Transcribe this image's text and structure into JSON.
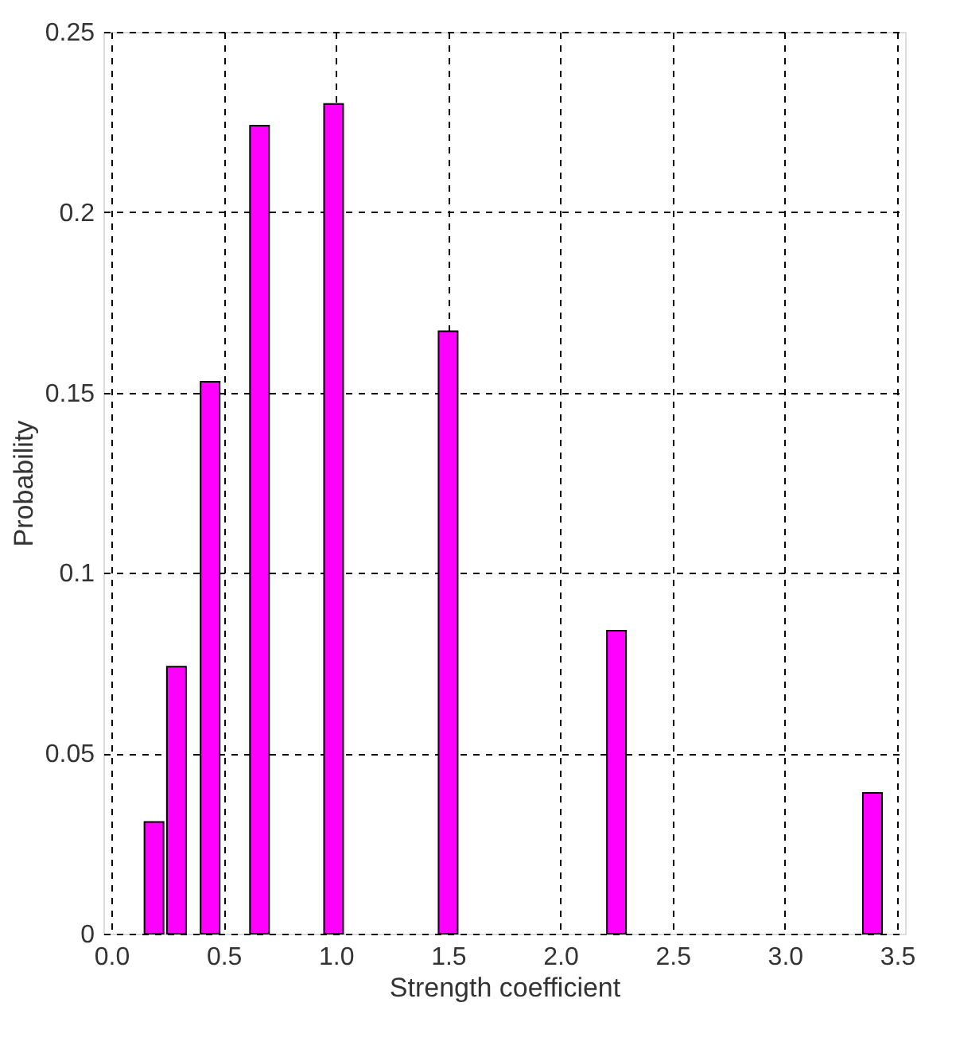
{
  "chart_data": {
    "type": "bar",
    "xlabel": "Strength coefficient",
    "ylabel": "Probability",
    "x": [
      0.19,
      0.29,
      0.44,
      0.66,
      0.99,
      1.5,
      2.25,
      3.39
    ],
    "values": [
      0.031,
      0.074,
      0.153,
      0.224,
      0.23,
      0.167,
      0.084,
      0.039
    ],
    "color": "#ff00ff",
    "xlim": [
      0,
      3.5
    ],
    "xticks": [
      {
        "value": 0,
        "label": "0.0"
      },
      {
        "value": 0.5,
        "label": "0.5"
      },
      {
        "value": 1,
        "label": "1.0"
      },
      {
        "value": 1.5,
        "label": "1.5"
      },
      {
        "value": 2,
        "label": "2.0"
      },
      {
        "value": 2.5,
        "label": "2.5"
      },
      {
        "value": 3,
        "label": "3.0"
      },
      {
        "value": 3.5,
        "label": "3.5"
      }
    ],
    "ylim": [
      0,
      0.25
    ],
    "yticks": [
      0,
      0.05,
      0.1,
      0.15,
      0.2,
      0.25
    ],
    "grid": true
  }
}
